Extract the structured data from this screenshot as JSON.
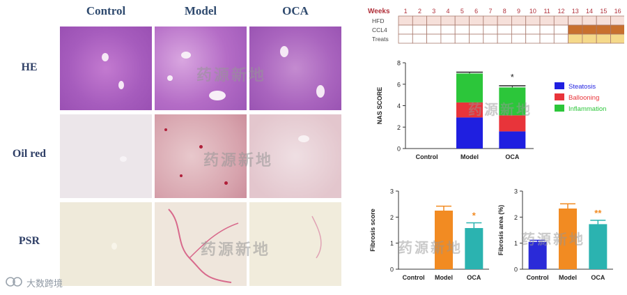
{
  "histology": {
    "columns": [
      "Control",
      "Model",
      "OCA"
    ],
    "rows": [
      "HE",
      "Oil red",
      "PSR"
    ]
  },
  "watermark": "药源新地",
  "footer_logo_text": "大数跨境",
  "colors": {
    "steatosis": "#1f1fe0",
    "ballooning": "#e8343a",
    "inflammation": "#2cc63a",
    "control_bar": "#2a2ad8",
    "model_bar": "#f28b22",
    "oca_bar": "#2bb3b0",
    "weeks_label": "#b0303a",
    "hfd_fill": "#f6e0da",
    "ccl4_fill": "#c8702e",
    "treat_fill": "#f5d98a"
  },
  "timeline": {
    "weeks_label": "Weeks",
    "weeks": [
      "1",
      "2",
      "3",
      "4",
      "5",
      "6",
      "7",
      "8",
      "9",
      "10",
      "11",
      "12",
      "13",
      "14",
      "15",
      "16"
    ],
    "rows": [
      {
        "label": "HFD",
        "start_week": 1,
        "end_week": 16,
        "color": "#f6e0da"
      },
      {
        "label": "CCL4",
        "start_week": 13,
        "end_week": 16,
        "color": "#c8702e"
      },
      {
        "label": "Treats",
        "start_week": 13,
        "end_week": 16,
        "color": "#f5d98a"
      }
    ]
  },
  "chart_data": [
    {
      "type": "bar",
      "stacked": true,
      "categories": [
        "Control",
        "Model",
        "OCA"
      ],
      "series": [
        {
          "name": "Steatosis",
          "values": [
            0,
            2.9,
            1.6
          ],
          "color": "#1f1fe0"
        },
        {
          "name": "Ballooning",
          "values": [
            0,
            1.4,
            1.5
          ],
          "color": "#e8343a"
        },
        {
          "name": "Inflammation",
          "values": [
            0,
            2.7,
            2.6
          ],
          "color": "#2cc63a"
        }
      ],
      "error_total": [
        0,
        0.12,
        0.15
      ],
      "significance": [
        "",
        "",
        "*"
      ],
      "ylabel": "NAS SCORE",
      "ylim": [
        0,
        8
      ],
      "yticks": [
        0,
        2,
        4,
        6,
        8
      ],
      "legend": "right"
    },
    {
      "type": "bar",
      "categories": [
        "Control",
        "Model",
        "OCA"
      ],
      "values": [
        0,
        2.25,
        1.58
      ],
      "errors": [
        0,
        0.17,
        0.2
      ],
      "colors": [
        "#2a2ad8",
        "#f28b22",
        "#2bb3b0"
      ],
      "significance": [
        "",
        "",
        "*"
      ],
      "ylabel": "Fibrosis score",
      "ylim": [
        0,
        3
      ],
      "yticks": [
        0,
        1,
        2,
        3
      ]
    },
    {
      "type": "bar",
      "categories": [
        "Control",
        "Model",
        "OCA"
      ],
      "values": [
        1.05,
        2.33,
        1.73
      ],
      "errors": [
        0.06,
        0.18,
        0.15
      ],
      "colors": [
        "#2a2ad8",
        "#f28b22",
        "#2bb3b0"
      ],
      "significance": [
        "",
        "",
        "**"
      ],
      "ylabel": "Fibrosis area (%)",
      "ylim": [
        0,
        3
      ],
      "yticks": [
        0,
        1,
        2,
        3
      ]
    }
  ]
}
